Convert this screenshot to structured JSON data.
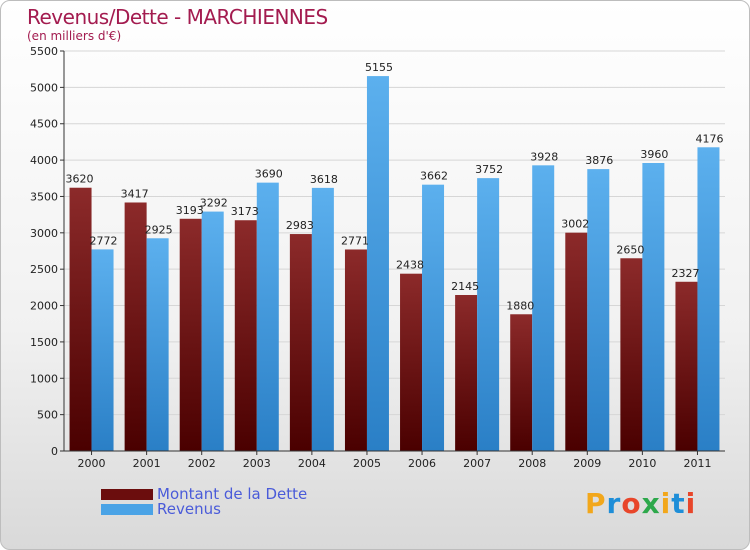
{
  "title": "Revenus/Dette - MARCHIENNES",
  "subtitle": "(en milliers d'€)",
  "logo": {
    "text": "Proxiti",
    "letter_colors": [
      "#f2a71b",
      "#1e8ed8",
      "#e8462a",
      "#2da84b",
      "#f2a71b",
      "#1e8ed8",
      "#e8462a"
    ]
  },
  "colors": {
    "dette": "#7a1515",
    "revenus": "#4aa3e6",
    "axis_text": "#222222"
  },
  "legend": [
    {
      "label": "Montant de la Dette",
      "color": "#6b0d0d"
    },
    {
      "label": "Revenus",
      "color": "#4aa3e6"
    }
  ],
  "chart_data": {
    "type": "bar",
    "title": "Revenus/Dette - MARCHIENNES",
    "subtitle": "(en milliers d'€)",
    "xlabel": "",
    "ylabel": "",
    "categories": [
      "2000",
      "2001",
      "2002",
      "2003",
      "2004",
      "2005",
      "2006",
      "2007",
      "2008",
      "2009",
      "2010",
      "2011"
    ],
    "series": [
      {
        "name": "Montant de la Dette",
        "values": [
          3620,
          3417,
          3193,
          3173,
          2983,
          2771,
          2438,
          2145,
          1880,
          3002,
          2650,
          2327
        ]
      },
      {
        "name": "Revenus",
        "values": [
          2772,
          2925,
          3292,
          3690,
          3618,
          5155,
          3662,
          3752,
          3928,
          3876,
          3960,
          4176
        ]
      }
    ],
    "ylim": [
      0,
      5500
    ],
    "yticks": [
      0,
      500,
      1000,
      1500,
      2000,
      2500,
      3000,
      3500,
      4000,
      4500,
      5000,
      5500
    ],
    "grid": true,
    "legend_position": "bottom-left"
  }
}
